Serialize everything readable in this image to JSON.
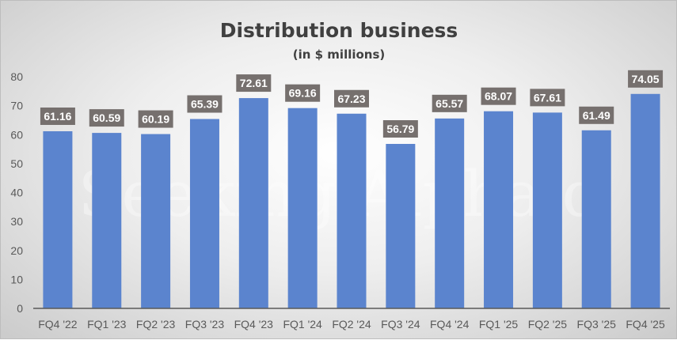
{
  "chart_data": {
    "type": "bar",
    "title": "Distribution business",
    "subtitle": "(in $ millions)",
    "xlabel": "",
    "ylabel": "",
    "ylim": [
      0,
      80
    ],
    "yticks": [
      0,
      10,
      20,
      30,
      40,
      50,
      60,
      70,
      80
    ],
    "grid": false,
    "legend": "none",
    "categories": [
      "FQ4 '22",
      "FQ1 '23",
      "FQ2 '23",
      "FQ3 '23",
      "FQ4 '23",
      "FQ1 '24",
      "FQ2 '24",
      "FQ3 '24",
      "FQ4 '24",
      "FQ1 '25",
      "FQ2 '25",
      "FQ3 '25",
      "FQ4 '25"
    ],
    "values": [
      61.16,
      60.59,
      60.19,
      65.39,
      72.61,
      69.16,
      67.23,
      56.79,
      65.57,
      68.07,
      67.61,
      61.49,
      74.05
    ],
    "value_labels": [
      "61.16",
      "60.59",
      "60.19",
      "65.39",
      "72.61",
      "69.16",
      "67.23",
      "56.79",
      "65.57",
      "68.07",
      "67.61",
      "61.49",
      "74.05"
    ],
    "bar_color": "#5B84CE",
    "label_box_color": "#76706E"
  },
  "watermark": "Seeking Alpha α"
}
